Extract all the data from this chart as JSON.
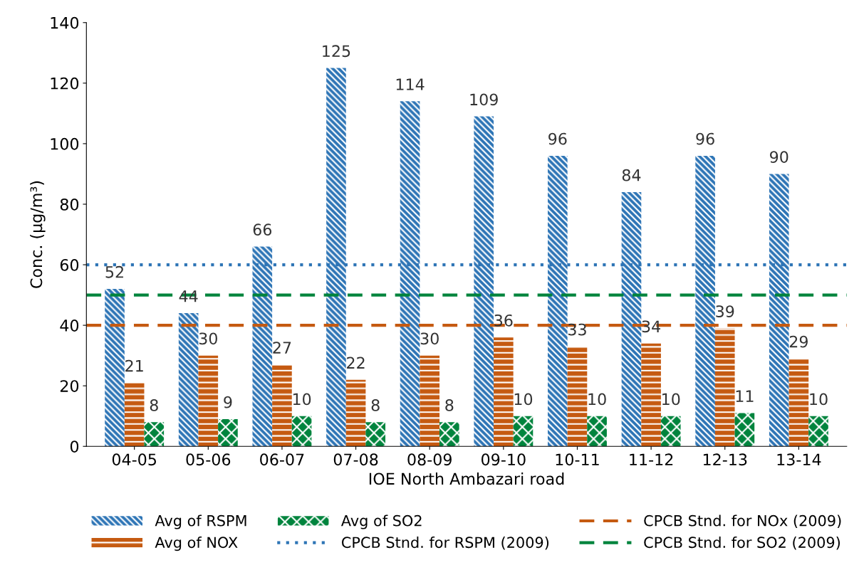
{
  "chart_data": {
    "type": "bar",
    "xlabel": "IOE North Ambazari road",
    "ylabel": "Conc. (µg/m³)",
    "categories": [
      "04-05",
      "05-06",
      "06-07",
      "07-08",
      "08-09",
      "09-10",
      "10-11",
      "11-12",
      "12-13",
      "13-14"
    ],
    "series": [
      {
        "name": "Avg of RSPM",
        "color": "#2e75b6",
        "values": [
          52,
          44,
          66,
          125,
          114,
          109,
          96,
          84,
          96,
          90
        ]
      },
      {
        "name": "Avg of NOX",
        "color": "#c55a11",
        "values": [
          21,
          30,
          27,
          22,
          30,
          36,
          33,
          34,
          39,
          29
        ]
      },
      {
        "name": "Avg of SO2",
        "color": "#00843d",
        "values": [
          8,
          9,
          10,
          8,
          8,
          10,
          10,
          10,
          11,
          10
        ]
      }
    ],
    "ref_lines": [
      {
        "axis": "y",
        "value": 60,
        "label": "CPCB Stnd. for RSPM (2009)",
        "color": "#2e75b6",
        "line_style": "dotted"
      },
      {
        "axis": "y",
        "value": 40,
        "label": "CPCB Stnd. for NOx (2009)",
        "color": "#c55a11",
        "line_style": "dashed"
      },
      {
        "axis": "y",
        "value": 50,
        "label": "CPCB Stnd. for SO2 (2009)",
        "color": "#00843d",
        "line_style": "dashed"
      }
    ],
    "ylim": [
      0,
      140
    ],
    "yticks": [
      0,
      20,
      40,
      60,
      80,
      100,
      120,
      140
    ],
    "data_labels": true,
    "grid": false,
    "legend": "bottom"
  }
}
